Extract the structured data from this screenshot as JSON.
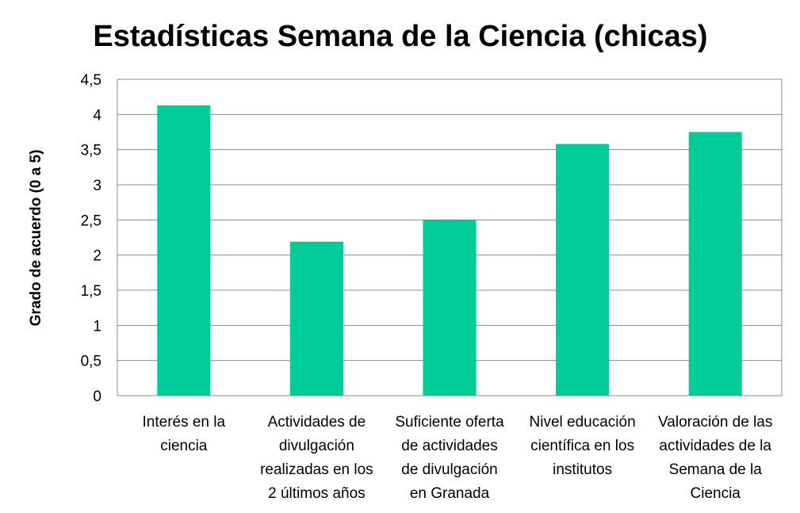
{
  "chart_data": {
    "type": "bar",
    "title": "Estadísticas Semana de la Ciencia (chicas)",
    "ylabel": "Grado de acuerdo (0 a 5)",
    "xlabel": "",
    "ylim": [
      0,
      4.5
    ],
    "y_ticks": [
      "0",
      "0,5",
      "1",
      "1,5",
      "2",
      "2,5",
      "3",
      "3,5",
      "4",
      "4,5"
    ],
    "grid": true,
    "legend": "none",
    "bar_color": "#00CC99",
    "categories": [
      [
        "Interés en la",
        "ciencia"
      ],
      [
        "Actividades de",
        "divulgación",
        "realizadas en los",
        "2 últimos años"
      ],
      [
        "Suficiente oferta",
        "de actividades",
        "de divulgación",
        "en Granada"
      ],
      [
        "Nivel educación",
        "científica en los",
        "institutos"
      ],
      [
        "Valoración de las",
        "actividades de la",
        "Semana de la",
        "Ciencia"
      ]
    ],
    "values": [
      4.13,
      2.19,
      2.5,
      3.58,
      3.75
    ]
  }
}
